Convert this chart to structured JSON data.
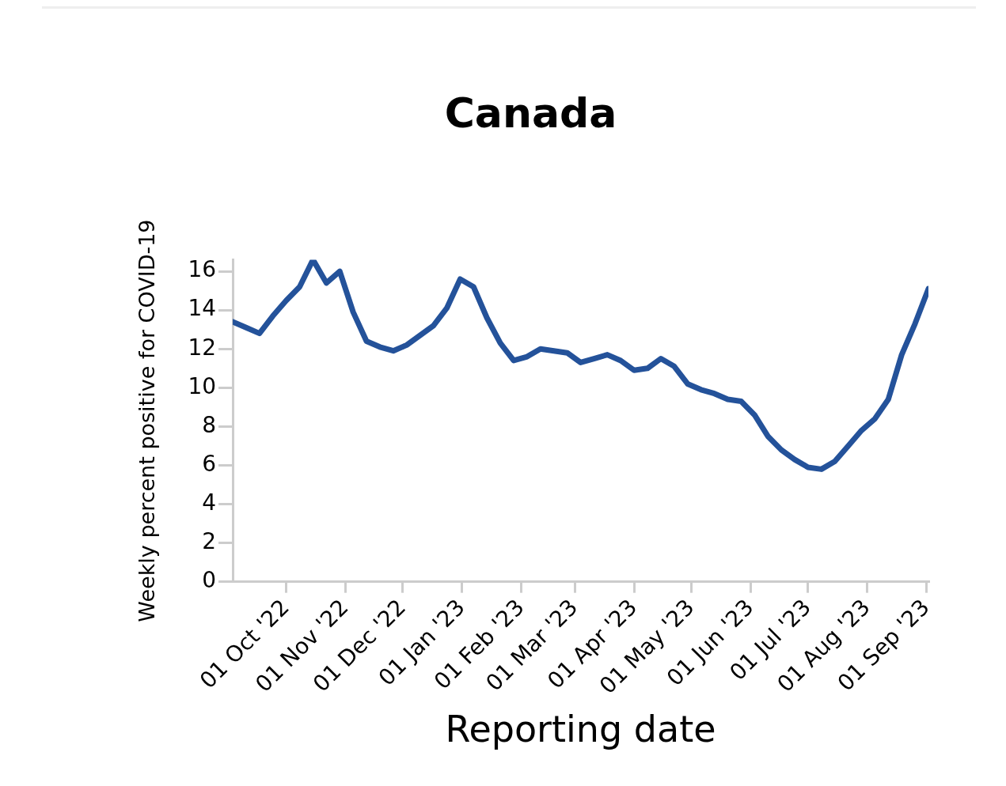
{
  "chart_data": {
    "type": "line",
    "title": "Canada",
    "xlabel": "Reporting date",
    "ylabel": "Weekly percent positive for COVID-19",
    "x": [
      "2022-09-03",
      "2022-09-10",
      "2022-09-17",
      "2022-09-24",
      "2022-10-01",
      "2022-10-08",
      "2022-10-15",
      "2022-10-22",
      "2022-10-29",
      "2022-11-05",
      "2022-11-12",
      "2022-11-19",
      "2022-11-26",
      "2022-12-03",
      "2022-12-10",
      "2022-12-17",
      "2022-12-24",
      "2022-12-31",
      "2023-01-07",
      "2023-01-14",
      "2023-01-21",
      "2023-01-28",
      "2023-02-04",
      "2023-02-11",
      "2023-02-18",
      "2023-02-25",
      "2023-03-04",
      "2023-03-11",
      "2023-03-18",
      "2023-03-25",
      "2023-04-01",
      "2023-04-08",
      "2023-04-15",
      "2023-04-22",
      "2023-04-29",
      "2023-05-06",
      "2023-05-13",
      "2023-05-20",
      "2023-05-27",
      "2023-06-03",
      "2023-06-10",
      "2023-06-17",
      "2023-06-24",
      "2023-07-01",
      "2023-07-08",
      "2023-07-15",
      "2023-07-22",
      "2023-07-29",
      "2023-08-05",
      "2023-08-12",
      "2023-08-19",
      "2023-08-26",
      "2023-09-02"
    ],
    "series": [
      {
        "color": "#24529a",
        "values": [
          13.4,
          13.1,
          12.8,
          13.7,
          14.5,
          15.2,
          16.6,
          15.4,
          16.0,
          13.9,
          12.4,
          12.1,
          11.9,
          12.2,
          12.7,
          13.2,
          14.1,
          15.6,
          15.2,
          13.6,
          12.3,
          11.4,
          11.6,
          12.0,
          11.9,
          11.8,
          11.3,
          11.5,
          11.7,
          11.4,
          10.9,
          11.0,
          11.5,
          11.1,
          10.2,
          9.9,
          9.7,
          9.4,
          9.3,
          8.6,
          7.5,
          6.8,
          6.3,
          5.9,
          5.8,
          6.2,
          7.0,
          7.8,
          8.4,
          9.4,
          11.7,
          13.3,
          15.1
        ]
      }
    ],
    "xlim": [
      "2022-09-03",
      "2023-09-02"
    ],
    "xticks": [
      {
        "value": "2022-10-01",
        "label": "01 Oct '22"
      },
      {
        "value": "2022-11-01",
        "label": "01 Nov '22"
      },
      {
        "value": "2022-12-01",
        "label": "01 Dec '22"
      },
      {
        "value": "2023-01-01",
        "label": "01 Jan '23"
      },
      {
        "value": "2023-02-01",
        "label": "01 Feb '23"
      },
      {
        "value": "2023-03-01",
        "label": "01 Mar '23"
      },
      {
        "value": "2023-04-01",
        "label": "01 Apr '23"
      },
      {
        "value": "2023-05-01",
        "label": "01 May '23"
      },
      {
        "value": "2023-06-01",
        "label": "01 Jun '23"
      },
      {
        "value": "2023-07-01",
        "label": "01 Jul '23"
      },
      {
        "value": "2023-08-01",
        "label": "01 Aug '23"
      },
      {
        "value": "2023-09-01",
        "label": "01 Sep '23"
      }
    ],
    "ylim": [
      0,
      16.6
    ],
    "yticks": [
      0,
      2,
      4,
      6,
      8,
      10,
      12,
      14,
      16
    ],
    "grid": false,
    "legend": false,
    "marker": "none",
    "line_style": "solid"
  }
}
